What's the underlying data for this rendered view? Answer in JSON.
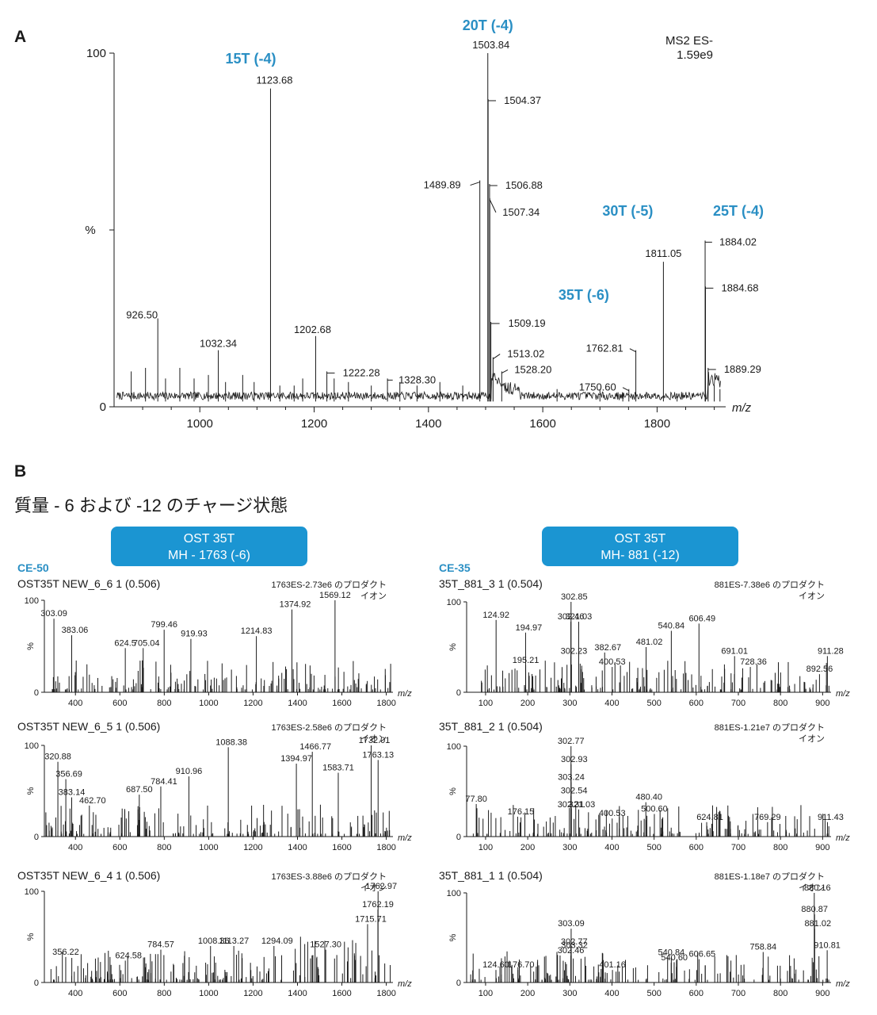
{
  "panel_a_label": "A",
  "panel_b_label": "B",
  "subtitle_b": "質量 - 6 および -12 のチャージ状態",
  "box_left": {
    "line1": "OST 35T",
    "line2": "MH - 1763 (-6)"
  },
  "box_right": {
    "line1": "OST 35T",
    "line2": "MH- 881 (-12)"
  },
  "ce_left": "CE-50",
  "ce_right": "CE-35",
  "chart_data": [
    {
      "id": "A",
      "type": "line",
      "xlabel": "m/z",
      "ylabel": "%",
      "xlim": [
        850,
        1920
      ],
      "ylim": [
        0,
        100
      ],
      "xticks": [
        1000,
        1200,
        1400,
        1600,
        1800
      ],
      "yticks": [
        0,
        100
      ],
      "ytick_mid_label": "%",
      "header": [
        "MS2 ES-",
        "1.59e9"
      ],
      "charge_labels": [
        {
          "text": "15T (-4)",
          "x": 1123.68
        },
        {
          "text": "20T (-4)",
          "x": 1503.84
        },
        {
          "text": "30T (-5)",
          "x": 1811.05
        },
        {
          "text": "25T (-4)",
          "x": 1884.02
        },
        {
          "text": "35T (-6)",
          "x": 1540
        }
      ],
      "peaks": [
        {
          "x": 926.5,
          "y": 25,
          "label": "926.50"
        },
        {
          "x": 1032.34,
          "y": 16,
          "label": "1032.34"
        },
        {
          "x": 1123.68,
          "y": 90,
          "label": "1123.68"
        },
        {
          "x": 1202.68,
          "y": 20,
          "label": "1202.68"
        },
        {
          "x": 1222.28,
          "y": 10,
          "label": "1222.28"
        },
        {
          "x": 1328.3,
          "y": 8,
          "label": "1328.30"
        },
        {
          "x": 1489.89,
          "y": 64,
          "label": "1489.89"
        },
        {
          "x": 1503.84,
          "y": 100,
          "label": "1503.84"
        },
        {
          "x": 1504.37,
          "y": 87,
          "label": "1504.37"
        },
        {
          "x": 1506.88,
          "y": 63,
          "label": "1506.88"
        },
        {
          "x": 1507.34,
          "y": 59,
          "label": "1507.34"
        },
        {
          "x": 1509.19,
          "y": 24,
          "label": "1509.19"
        },
        {
          "x": 1513.02,
          "y": 14,
          "label": "1513.02"
        },
        {
          "x": 1528.2,
          "y": 10,
          "label": "1528.20"
        },
        {
          "x": 1750.6,
          "y": 5,
          "label": "1750.60"
        },
        {
          "x": 1762.81,
          "y": 16,
          "label": "1762.81"
        },
        {
          "x": 1811.05,
          "y": 41,
          "label": "1811.05"
        },
        {
          "x": 1884.02,
          "y": 47,
          "label": "1884.02"
        },
        {
          "x": 1884.68,
          "y": 34,
          "label": "1884.68"
        },
        {
          "x": 1889.29,
          "y": 11,
          "label": "1889.29"
        }
      ],
      "minor_peaks": [
        [
          880,
          10
        ],
        [
          905,
          11
        ],
        [
          940,
          8
        ],
        [
          965,
          11
        ],
        [
          990,
          8
        ],
        [
          1015,
          9
        ],
        [
          1045,
          7
        ],
        [
          1075,
          9
        ],
        [
          1095,
          7
        ],
        [
          1140,
          6
        ],
        [
          1165,
          6
        ],
        [
          1180,
          8
        ],
        [
          1235,
          8
        ],
        [
          1260,
          7
        ],
        [
          1300,
          6
        ],
        [
          1350,
          7
        ],
        [
          1380,
          6
        ],
        [
          1420,
          7
        ],
        [
          1460,
          6
        ],
        [
          1625,
          5
        ],
        [
          1700,
          5
        ],
        [
          1740,
          4
        ],
        [
          1835,
          3
        ],
        [
          1900,
          6
        ],
        [
          1910,
          5
        ]
      ]
    },
    {
      "id": "B-left-1",
      "type": "bar",
      "name": "OST35T NEW_6_6 1 (0.506)",
      "header": "1763ES-2.73e6 のプロダクト",
      "header2": "イオン",
      "xlabel": "m/z",
      "ylabel": "%",
      "xlim": [
        260,
        1830
      ],
      "ylim": [
        0,
        100
      ],
      "xticks": [
        400,
        600,
        800,
        1000,
        1200,
        1400,
        1600,
        1800
      ],
      "yticks": [
        0,
        100
      ],
      "peaks": [
        {
          "x": 303.09,
          "y": 80,
          "label": "303.09"
        },
        {
          "x": 383.06,
          "y": 62,
          "label": "383.06"
        },
        {
          "x": 624.5,
          "y": 48,
          "label": "624.5"
        },
        {
          "x": 705.04,
          "y": 48,
          "label": "705.04"
        },
        {
          "x": 799.46,
          "y": 68,
          "label": "799.46"
        },
        {
          "x": 919.93,
          "y": 58,
          "label": "919.93"
        },
        {
          "x": 1214.83,
          "y": 61,
          "label": "1214.83"
        },
        {
          "x": 1374.92,
          "y": 90,
          "label": "1374.92"
        },
        {
          "x": 1569.12,
          "y": 100,
          "label": "1569.12"
        }
      ],
      "seed": 11
    },
    {
      "id": "B-left-2",
      "type": "bar",
      "name": "OST35T NEW_6_5 1 (0.506)",
      "header": "1763ES-2.58e6 のプロダクト",
      "header2": "イオン",
      "xlabel": "m/z",
      "ylabel": "%",
      "xlim": [
        260,
        1830
      ],
      "ylim": [
        0,
        100
      ],
      "xticks": [
        400,
        600,
        800,
        1000,
        1200,
        1400,
        1600,
        1800
      ],
      "yticks": [
        0,
        100
      ],
      "peaks": [
        {
          "x": 320.88,
          "y": 82,
          "label": "320.88"
        },
        {
          "x": 356.69,
          "y": 63,
          "label": "356.69"
        },
        {
          "x": 383.14,
          "y": 43,
          "label": "383.14"
        },
        {
          "x": 462.7,
          "y": 34,
          "label": "462.70"
        },
        {
          "x": 687.5,
          "y": 46,
          "label": "687.50"
        },
        {
          "x": 784.41,
          "y": 55,
          "label": "784.41"
        },
        {
          "x": 910.96,
          "y": 66,
          "label": "910.96"
        },
        {
          "x": 1088.38,
          "y": 98,
          "label": "1088.38"
        },
        {
          "x": 1394.97,
          "y": 80,
          "label": "1394.97"
        },
        {
          "x": 1466.77,
          "y": 93,
          "label": "1466.77"
        },
        {
          "x": 1583.71,
          "y": 70,
          "label": "1583.71"
        },
        {
          "x": 1732.01,
          "y": 100,
          "label": "1732.01"
        },
        {
          "x": 1763.13,
          "y": 84,
          "label": "1763.13"
        }
      ],
      "seed": 22
    },
    {
      "id": "B-left-3",
      "type": "bar",
      "name": "OST35T NEW_6_4 1 (0.506)",
      "header": "1763ES-3.88e6 のプロダクト",
      "header2": "イオン",
      "xlabel": "m/z",
      "ylabel": "%",
      "xlim": [
        260,
        1830
      ],
      "ylim": [
        0,
        100
      ],
      "xticks": [
        400,
        600,
        800,
        1000,
        1200,
        1400,
        1600,
        1800
      ],
      "yticks": [
        0,
        100
      ],
      "peaks": [
        {
          "x": 356.22,
          "y": 28,
          "label": "356.22"
        },
        {
          "x": 624.58,
          "y": 24,
          "label": "624.58"
        },
        {
          "x": 784.57,
          "y": 36,
          "label": "784.57"
        },
        {
          "x": 1008.36,
          "y": 40,
          "label": "1008.36"
        },
        {
          "x": 1113.27,
          "y": 40,
          "label": "1113.27"
        },
        {
          "x": 1294.09,
          "y": 40,
          "label": "1294.09"
        },
        {
          "x": 1527.3,
          "y": 36,
          "label": "1527.30"
        },
        {
          "x": 1715.71,
          "y": 64,
          "label": "1715.71"
        },
        {
          "x": 1762.19,
          "y": 80,
          "label": "1762.19"
        },
        {
          "x": 1762.97,
          "y": 100,
          "label": "1762.97"
        }
      ],
      "seed": 33
    },
    {
      "id": "B-right-1",
      "type": "bar",
      "name": "35T_881_3 1 (0.504)",
      "header": "881ES-7.38e6 のプロダクト",
      "header2": "イオン",
      "xlabel": "m/z",
      "ylabel": "%",
      "xlim": [
        55,
        920
      ],
      "ylim": [
        0,
        100
      ],
      "xticks": [
        100,
        200,
        300,
        400,
        500,
        600,
        700,
        800,
        900
      ],
      "yticks": [
        0,
        100
      ],
      "peaks": [
        {
          "x": 124.92,
          "y": 80,
          "label": "124.92"
        },
        {
          "x": 194.97,
          "y": 66,
          "label": "194.97"
        },
        {
          "x": 195.21,
          "y": 30,
          "label": "195.21"
        },
        {
          "x": 302.23,
          "y": 40,
          "label": "302.23"
        },
        {
          "x": 302.46,
          "y": 78,
          "label": "302.46"
        },
        {
          "x": 302.85,
          "y": 100,
          "label": "302.85"
        },
        {
          "x": 321.03,
          "y": 78,
          "label": "321.03"
        },
        {
          "x": 382.67,
          "y": 44,
          "label": "382.67"
        },
        {
          "x": 400.53,
          "y": 28,
          "label": "400.53"
        },
        {
          "x": 481.02,
          "y": 50,
          "label": "481.02"
        },
        {
          "x": 540.84,
          "y": 68,
          "label": "540.84"
        },
        {
          "x": 606.49,
          "y": 76,
          "label": "606.49"
        },
        {
          "x": 691.01,
          "y": 40,
          "label": "691.01"
        },
        {
          "x": 728.36,
          "y": 28,
          "label": "728.36"
        },
        {
          "x": 892.56,
          "y": 20,
          "label": "892.56"
        },
        {
          "x": 911.28,
          "y": 40,
          "label": "911.28"
        }
      ],
      "seed": 44
    },
    {
      "id": "B-right-2",
      "type": "bar",
      "name": "35T_881_2 1 (0.504)",
      "header": "881ES-1.21e7 のプロダクト",
      "header2": "イオン",
      "xlabel": "m/z",
      "ylabel": "%",
      "xlim": [
        55,
        920
      ],
      "ylim": [
        0,
        100
      ],
      "xticks": [
        100,
        200,
        300,
        400,
        500,
        600,
        700,
        800,
        900
      ],
      "yticks": [
        0,
        100
      ],
      "peaks": [
        {
          "x": 77.8,
          "y": 36,
          "label": "77.80"
        },
        {
          "x": 176.15,
          "y": 22,
          "label": "176.15"
        },
        {
          "x": 302.31,
          "y": 30,
          "label": "302.31"
        },
        {
          "x": 302.54,
          "y": 45,
          "label": "302.54"
        },
        {
          "x": 302.77,
          "y": 100,
          "label": "302.77"
        },
        {
          "x": 302.93,
          "y": 80,
          "label": "302.93"
        },
        {
          "x": 303.24,
          "y": 60,
          "label": "303.24"
        },
        {
          "x": 321.03,
          "y": 30,
          "label": "321.03"
        },
        {
          "x": 400.53,
          "y": 20,
          "label": "400.53"
        },
        {
          "x": 480.4,
          "y": 38,
          "label": "480.40"
        },
        {
          "x": 500.6,
          "y": 25,
          "label": "500.60"
        },
        {
          "x": 624.81,
          "y": 16,
          "label": "624.81"
        },
        {
          "x": 769.29,
          "y": 16,
          "label": "769.29"
        },
        {
          "x": 911.43,
          "y": 16,
          "label": "911.43"
        }
      ],
      "seed": 55
    },
    {
      "id": "B-right-3",
      "type": "bar",
      "name": "35T_881_1 1 (0.504)",
      "header": "881ES-1.18e7 のプロダクト",
      "header2": "イオン",
      "xlabel": "m/z",
      "ylabel": "%",
      "xlim": [
        55,
        920
      ],
      "ylim": [
        0,
        100
      ],
      "xticks": [
        100,
        200,
        300,
        400,
        500,
        600,
        700,
        800,
        900
      ],
      "yticks": [
        0,
        100
      ],
      "peaks": [
        {
          "x": 124.6,
          "y": 14,
          "label": "124.60"
        },
        {
          "x": 176.7,
          "y": 14,
          "label": "176.70"
        },
        {
          "x": 302.46,
          "y": 30,
          "label": "302.46"
        },
        {
          "x": 302.77,
          "y": 40,
          "label": "302.77"
        },
        {
          "x": 303.09,
          "y": 60,
          "label": "303.09"
        },
        {
          "x": 303.32,
          "y": 36,
          "label": "303.32"
        },
        {
          "x": 401.16,
          "y": 14,
          "label": "401.16"
        },
        {
          "x": 540.6,
          "y": 22,
          "label": "540.60"
        },
        {
          "x": 540.84,
          "y": 28,
          "label": "540.84"
        },
        {
          "x": 606.65,
          "y": 26,
          "label": "606.65"
        },
        {
          "x": 758.84,
          "y": 34,
          "label": "758.84"
        },
        {
          "x": 880.16,
          "y": 100,
          "label": "880.16"
        },
        {
          "x": 880.87,
          "y": 76,
          "label": "880.87"
        },
        {
          "x": 881.02,
          "y": 60,
          "label": "881.02"
        },
        {
          "x": 910.81,
          "y": 36,
          "label": "910.81"
        }
      ],
      "seed": 66
    }
  ]
}
